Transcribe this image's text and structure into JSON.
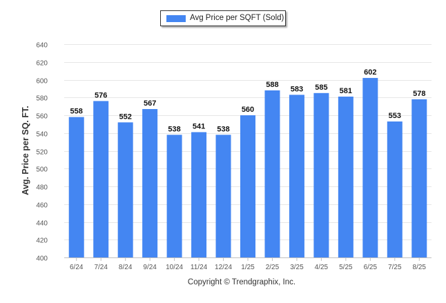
{
  "colors": {
    "bar": "#4486F2",
    "grid": "#E6E6E6",
    "axis_text": "#555555"
  },
  "legend": {
    "label": "Avg Price per SQFT (Sold)",
    "placement": "top-center"
  },
  "footer": {
    "copyright": "Copyright © Trendgraphix, Inc."
  },
  "chart_data": {
    "type": "bar",
    "title": "",
    "xlabel": "",
    "ylabel": "Avg. Price per SQ. FT.",
    "categories": [
      "6/24",
      "7/24",
      "8/24",
      "9/24",
      "10/24",
      "11/24",
      "12/24",
      "1/25",
      "2/25",
      "3/25",
      "4/25",
      "5/25",
      "6/25",
      "7/25",
      "8/25"
    ],
    "series": [
      {
        "name": "Avg Price per SQFT (Sold)",
        "values": [
          558,
          576,
          552,
          567,
          538,
          541,
          538,
          560,
          588,
          583,
          585,
          581,
          602,
          553,
          578
        ]
      }
    ],
    "ylim": [
      400,
      640
    ],
    "yticks": [
      400,
      420,
      440,
      460,
      480,
      500,
      520,
      540,
      560,
      580,
      600,
      620,
      640
    ],
    "grid": true,
    "data_labels": true
  }
}
